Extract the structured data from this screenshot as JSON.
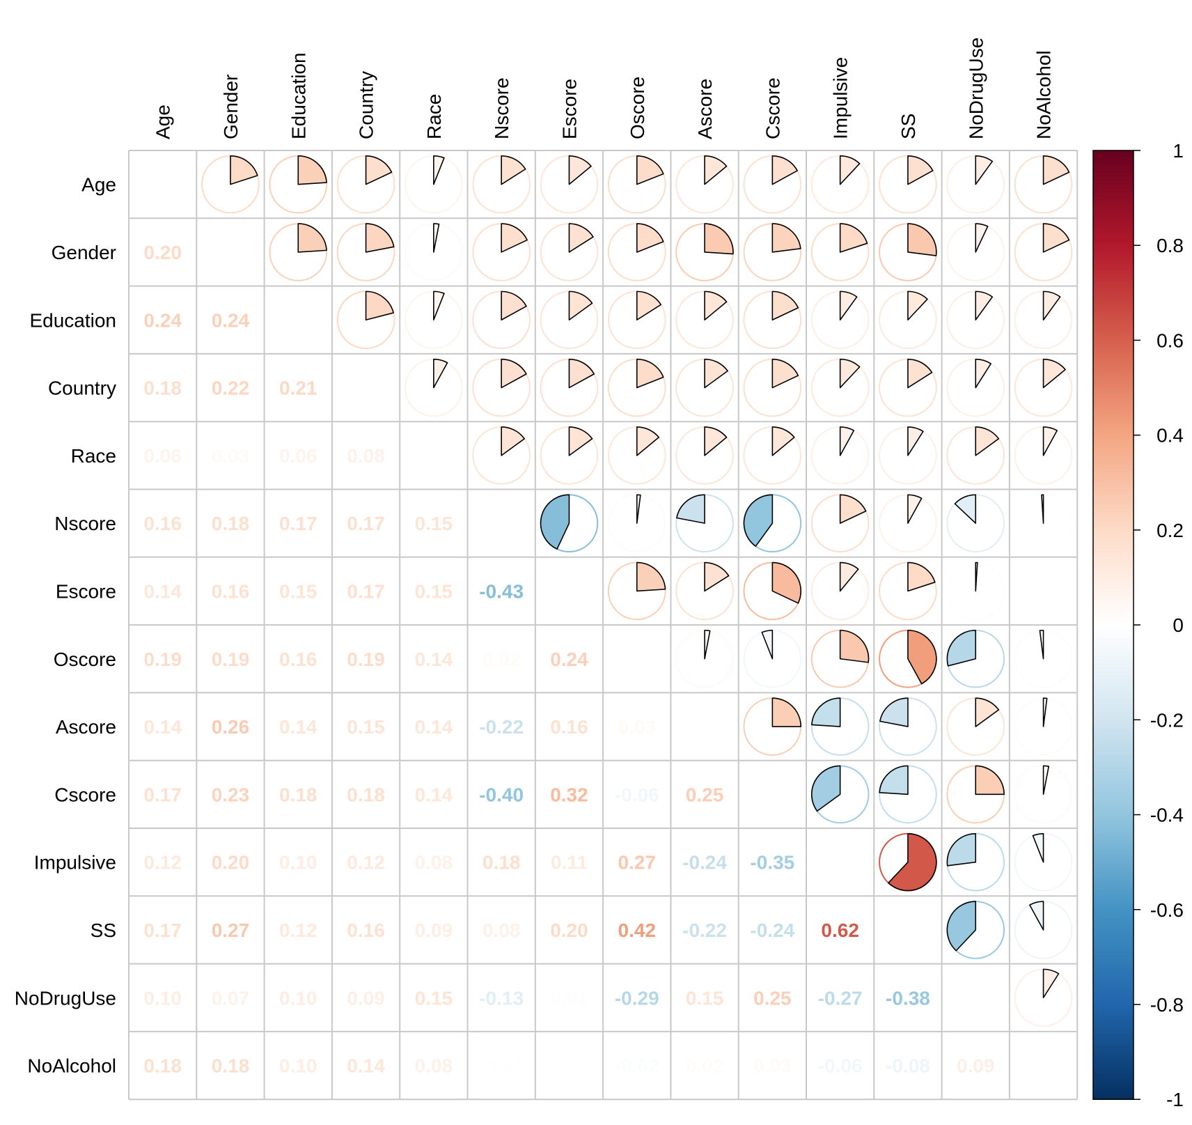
{
  "chart_data": {
    "type": "heatmap",
    "method": "mixed: pie (upper triangle) / number (lower triangle)",
    "variables": [
      "Age",
      "Gender",
      "Education",
      "Country",
      "Race",
      "Nscore",
      "Escore",
      "Oscore",
      "Ascore",
      "Cscore",
      "Impulsive",
      "SS",
      "NoDrugUse",
      "NoAlcohol"
    ],
    "lower_labels": [
      [],
      [
        "0.20"
      ],
      [
        "0.24",
        "0.24"
      ],
      [
        "0.18",
        "0.22",
        "0.21"
      ],
      [
        "0.06",
        "0.03",
        "0.06",
        "0.08"
      ],
      [
        "0.16",
        "0.18",
        "0.17",
        "0.17",
        "0.15"
      ],
      [
        "0.14",
        "0.16",
        "0.15",
        "0.17",
        "0.15",
        "-0.43"
      ],
      [
        "0.19",
        "0.19",
        "0.16",
        "0.19",
        "0.14",
        "0.02",
        "0.24"
      ],
      [
        "0.14",
        "0.26",
        "0.14",
        "0.15",
        "0.14",
        "-0.22",
        "0.16",
        "0.03"
      ],
      [
        "0.17",
        "0.23",
        "0.18",
        "0.18",
        "0.14",
        "-0.40",
        "0.32",
        "-0.06",
        "0.25"
      ],
      [
        "0.12",
        "0.20",
        "0.10",
        "0.12",
        "0.08",
        "0.18",
        "0.11",
        "0.27",
        "-0.24",
        "-0.35"
      ],
      [
        "0.17",
        "0.27",
        "0.12",
        "0.16",
        "0.09",
        "0.08",
        "0.20",
        "0.42",
        "-0.22",
        "-0.24",
        "0.62"
      ],
      [
        "0.10",
        "0.07",
        "0.10",
        "0.09",
        "0.15",
        "-0.13",
        "0.01",
        "-0.29",
        "0.15",
        "0.25",
        "-0.27",
        "-0.38"
      ],
      [
        "0.18",
        "0.18",
        "0.10",
        "0.14",
        "0.08",
        "-0.01",
        "0.00",
        "-0.02",
        "0.02",
        "0.03",
        "-0.06",
        "-0.08",
        "0.09"
      ]
    ],
    "matrix": [
      [
        1.0,
        0.2,
        0.24,
        0.18,
        0.06,
        0.16,
        0.14,
        0.19,
        0.14,
        0.17,
        0.12,
        0.17,
        0.1,
        0.18
      ],
      [
        0.2,
        1.0,
        0.24,
        0.22,
        0.03,
        0.18,
        0.16,
        0.19,
        0.26,
        0.23,
        0.2,
        0.27,
        0.07,
        0.18
      ],
      [
        0.24,
        0.24,
        1.0,
        0.21,
        0.06,
        0.17,
        0.15,
        0.16,
        0.14,
        0.18,
        0.1,
        0.12,
        0.1,
        0.1
      ],
      [
        0.18,
        0.22,
        0.21,
        1.0,
        0.08,
        0.17,
        0.17,
        0.19,
        0.15,
        0.18,
        0.12,
        0.16,
        0.09,
        0.14
      ],
      [
        0.06,
        0.03,
        0.06,
        0.08,
        1.0,
        0.15,
        0.15,
        0.14,
        0.14,
        0.14,
        0.08,
        0.09,
        0.15,
        0.08
      ],
      [
        0.16,
        0.18,
        0.17,
        0.17,
        0.15,
        1.0,
        -0.43,
        0.02,
        -0.22,
        -0.4,
        0.18,
        0.08,
        -0.13,
        -0.01
      ],
      [
        0.14,
        0.16,
        0.15,
        0.17,
        0.15,
        -0.43,
        1.0,
        0.24,
        0.16,
        0.32,
        0.11,
        0.2,
        0.01,
        0.0
      ],
      [
        0.19,
        0.19,
        0.16,
        0.19,
        0.14,
        0.02,
        0.24,
        1.0,
        0.03,
        -0.06,
        0.27,
        0.42,
        -0.29,
        -0.02
      ],
      [
        0.14,
        0.26,
        0.14,
        0.15,
        0.14,
        -0.22,
        0.16,
        0.03,
        1.0,
        0.25,
        -0.24,
        -0.22,
        0.15,
        0.02
      ],
      [
        0.17,
        0.23,
        0.18,
        0.18,
        0.14,
        -0.4,
        0.32,
        -0.06,
        0.25,
        1.0,
        -0.35,
        -0.24,
        0.25,
        0.03
      ],
      [
        0.12,
        0.2,
        0.1,
        0.12,
        0.08,
        0.18,
        0.11,
        0.27,
        -0.24,
        -0.35,
        1.0,
        0.62,
        -0.27,
        -0.06
      ],
      [
        0.17,
        0.27,
        0.12,
        0.16,
        0.09,
        0.08,
        0.2,
        0.42,
        -0.22,
        -0.24,
        0.62,
        1.0,
        -0.38,
        -0.08
      ],
      [
        0.1,
        0.07,
        0.1,
        0.09,
        0.15,
        -0.13,
        0.01,
        -0.29,
        0.15,
        0.25,
        -0.27,
        -0.38,
        1.0,
        0.09
      ],
      [
        0.18,
        0.18,
        0.1,
        0.14,
        0.08,
        -0.01,
        0.0,
        -0.02,
        0.02,
        0.03,
        -0.06,
        -0.08,
        0.09,
        1.0
      ]
    ],
    "colorbar": {
      "range": [
        -1,
        1
      ],
      "ticks": [
        "1",
        "0.8",
        "0.6",
        "0.4",
        "0.2",
        "0",
        "-0.2",
        "-0.4",
        "-0.6",
        "-0.8",
        "-1"
      ],
      "colors": [
        "#67001F",
        "#B2182B",
        "#D6604D",
        "#F4A582",
        "#FDDBC7",
        "#FFFFFF",
        "#D1E5F0",
        "#92C5DE",
        "#4393C3",
        "#2166AC",
        "#053061"
      ]
    },
    "grid": true,
    "legend": "right"
  }
}
